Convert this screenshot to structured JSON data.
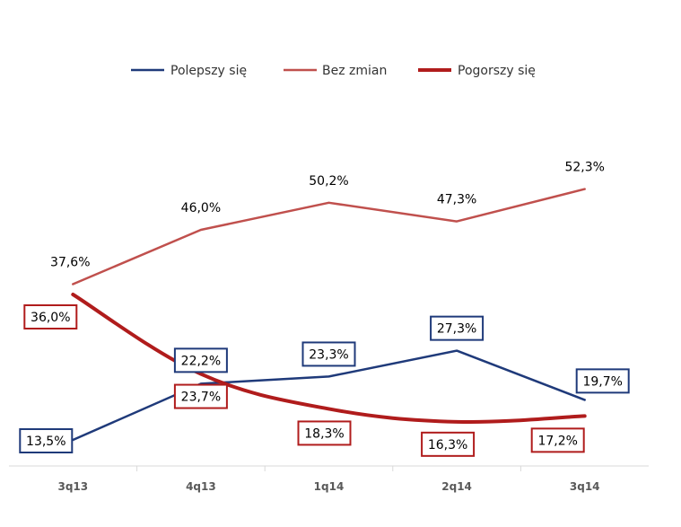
{
  "chart_data": {
    "type": "line",
    "title": "",
    "xlabel": "",
    "ylabel": "",
    "categories": [
      "3q13",
      "4q13",
      "1q14",
      "2q14",
      "3q14"
    ],
    "ylim": [
      0,
      70
    ],
    "grid": false,
    "legend_position": "top-center",
    "series": [
      {
        "name": "Polepszy się",
        "color": "#1F3A7A",
        "values": [
          13.5,
          22.2,
          23.3,
          27.3,
          19.7
        ],
        "labels": [
          "13,5%",
          "22,2%",
          "23,3%",
          "27,3%",
          "19,7%"
        ],
        "label_box": true,
        "line_weight": "thin"
      },
      {
        "name": "Bez zmian",
        "color": "#C0504D",
        "values": [
          37.6,
          46.0,
          50.2,
          47.3,
          52.3
        ],
        "labels": [
          "37,6%",
          "46,0%",
          "50,2%",
          "47,3%",
          "52,3%"
        ],
        "label_box": false,
        "line_weight": "thin"
      },
      {
        "name": "Pogorszy się",
        "color": "#B01C1C",
        "values": [
          36.0,
          23.7,
          18.3,
          16.3,
          17.2
        ],
        "labels": [
          "36,0%",
          "23,7%",
          "18,3%",
          "16,3%",
          "17,2%"
        ],
        "label_box": true,
        "line_weight": "thick"
      }
    ]
  }
}
